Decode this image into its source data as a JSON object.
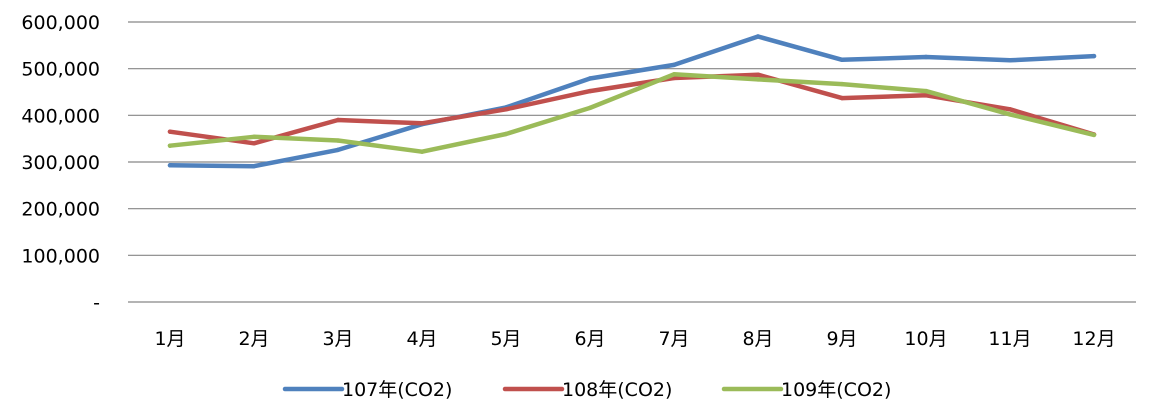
{
  "chart_data": {
    "type": "line",
    "categories": [
      "1月",
      "2月",
      "3月",
      "4月",
      "5月",
      "6月",
      "7月",
      "8月",
      "9月",
      "10月",
      "11月",
      "12月"
    ],
    "series": [
      {
        "name": "107年(CO2)",
        "color": "#4F81BD",
        "values": [
          293000,
          291000,
          326000,
          381000,
          417000,
          479000,
          508000,
          569000,
          519000,
          525000,
          518000,
          527000
        ]
      },
      {
        "name": "108年(CO2)",
        "color": "#C0504D",
        "values": [
          365000,
          340000,
          390000,
          383000,
          413000,
          452000,
          480000,
          487000,
          437000,
          443000,
          413000,
          359000
        ]
      },
      {
        "name": "109年(CO2)",
        "color": "#9BBB59",
        "values": [
          335000,
          354000,
          346000,
          322000,
          360000,
          416000,
          488000,
          477000,
          467000,
          452000,
          402000,
          358000
        ]
      }
    ],
    "yticks": [
      {
        "value": 0,
        "label": "-"
      },
      {
        "value": 100000,
        "label": "100,000"
      },
      {
        "value": 200000,
        "label": "200,000"
      },
      {
        "value": 300000,
        "label": "300,000"
      },
      {
        "value": 400000,
        "label": "400,000"
      },
      {
        "value": 500000,
        "label": "500,000"
      },
      {
        "value": 600000,
        "label": "600,000"
      }
    ],
    "ylim": [
      0,
      600000
    ],
    "grid": true,
    "legend": "bottom"
  }
}
